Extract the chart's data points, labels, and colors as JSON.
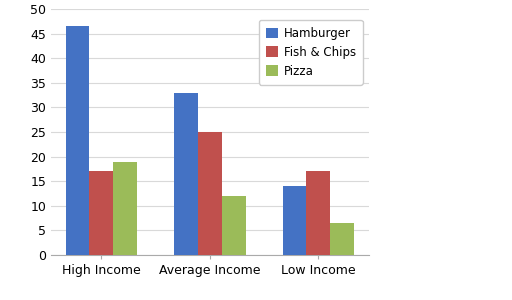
{
  "categories": [
    "High Income",
    "Average Income",
    "Low Income"
  ],
  "series": {
    "Hamburger": [
      46.5,
      33,
      14
    ],
    "Fish & Chips": [
      17,
      25,
      17
    ],
    "Pizza": [
      19,
      12,
      6.5
    ]
  },
  "colors": {
    "Hamburger": "#4472C4",
    "Fish & Chips": "#C0504D",
    "Pizza": "#9BBB59"
  },
  "ylim": [
    0,
    50
  ],
  "yticks": [
    0,
    5,
    10,
    15,
    20,
    25,
    30,
    35,
    40,
    45,
    50
  ],
  "bar_width": 0.22,
  "background_color": "#FFFFFF",
  "legend_labels": [
    "Hamburger",
    "Fish & Chips",
    "Pizza"
  ],
  "figsize": [
    5.12,
    3.0
  ],
  "dpi": 100
}
